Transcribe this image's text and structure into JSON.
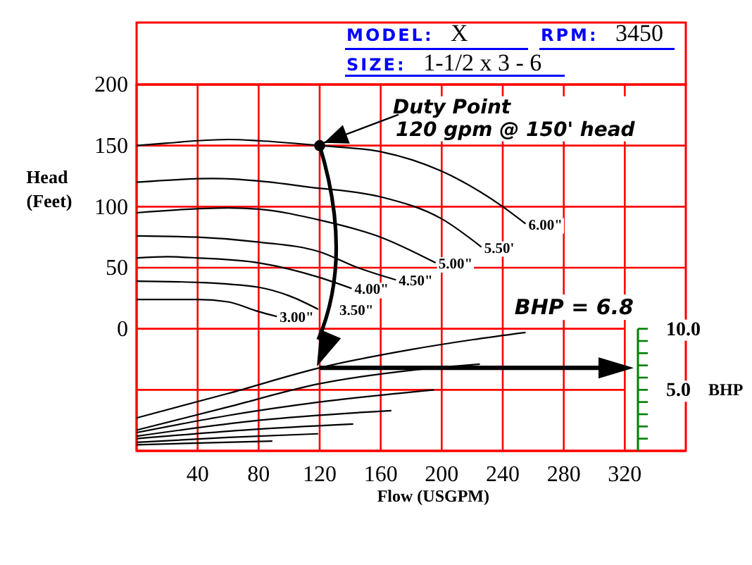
{
  "chart_data": {
    "type": "line",
    "title": "MODEL: X",
    "subtitle": "SIZE: 1-1/2 x 3 - 6",
    "xlabel": "Flow (USGPM)",
    "ylabel": "Head (Feet)",
    "y2label": "BHP",
    "annotations": [
      "RPM: 3450",
      {
        "text": "Duty Point\n120 gpm @ 150' head",
        "x": 120,
        "y": 150
      }
    ],
    "xlim": [
      0,
      360
    ],
    "xticks": [
      40,
      80,
      120,
      160,
      200,
      240,
      280,
      320
    ],
    "ylim": [
      -100,
      200
    ],
    "yticks": [
      {
        "value": -50,
        "label": null
      },
      0,
      50,
      100,
      150,
      200
    ],
    "y2lim": [
      0,
      30
    ],
    "y2ticks": [
      {
        "value": 5,
        "label": "5.0"
      },
      {
        "value": 10,
        "label": "10.0"
      }
    ],
    "grid": true,
    "ref_lines": [
      {
        "axis": "y2",
        "value": 6.8,
        "label": "BHP = 6.8"
      }
    ],
    "series": [
      {
        "name": "6.00\"",
        "color": "#000000",
        "x": [
          0,
          20,
          40,
          60,
          80,
          120,
          160,
          200,
          240,
          255
        ],
        "values": [
          150,
          152,
          154,
          155,
          154,
          150,
          145,
          129,
          100,
          86
        ]
      },
      {
        "name": "5.50'",
        "color": "#000000",
        "x": [
          0,
          50,
          80,
          113,
          160,
          200,
          226
        ],
        "values": [
          120,
          123,
          121,
          116,
          108,
          90,
          67
        ]
      },
      {
        "name": "5.00\"",
        "color": "#000000",
        "x": [
          0,
          60,
          80,
          120,
          160,
          196
        ],
        "values": [
          95,
          99,
          98,
          89,
          75,
          54
        ]
      },
      {
        "name": "4.50\"",
        "color": "#000000",
        "x": [
          0,
          40,
          80,
          120,
          145,
          170
        ],
        "values": [
          76,
          75,
          71,
          63,
          50,
          40
        ]
      },
      {
        "name": "4.00\"",
        "color": "#000000",
        "x": [
          0,
          20,
          40,
          80,
          120,
          141
        ],
        "values": [
          58,
          59,
          58,
          54,
          42,
          33
        ]
      },
      {
        "name": "3.50\"",
        "color": "#000000",
        "x": [
          0,
          40,
          80,
          100,
          119
        ],
        "values": [
          39,
          38,
          34,
          27,
          16
        ]
      },
      {
        "name": "3.00\"",
        "color": "#000000",
        "x": [
          0,
          40,
          60,
          80,
          92
        ],
        "values": [
          24,
          24,
          22,
          14,
          10
        ]
      },
      {
        "axis": "y2",
        "color": "#000000",
        "x": [
          0,
          60,
          120,
          180,
          220,
          255
        ],
        "values": [
          2.7,
          4.7,
          6.8,
          8.3,
          9.1,
          9.7
        ]
      },
      {
        "axis": "y2",
        "color": "#000000",
        "x": [
          0,
          60,
          120,
          180,
          225
        ],
        "values": [
          1.7,
          3.6,
          5.5,
          6.6,
          7.1
        ]
      },
      {
        "axis": "y2",
        "color": "#000000",
        "x": [
          0,
          60,
          120,
          195
        ],
        "values": [
          1.5,
          2.9,
          4.0,
          5.0
        ]
      },
      {
        "axis": "y2",
        "color": "#000000",
        "x": [
          0,
          80,
          167
        ],
        "values": [
          1.2,
          2.5,
          3.3
        ]
      },
      {
        "axis": "y2",
        "color": "#000000",
        "x": [
          0,
          70,
          142
        ],
        "values": [
          1.0,
          1.7,
          2.2
        ]
      },
      {
        "axis": "y2",
        "color": "#000000",
        "x": [
          0,
          60,
          119
        ],
        "values": [
          0.7,
          1.1,
          1.4
        ]
      },
      {
        "axis": "y2",
        "color": "#000000",
        "x": [
          0,
          89
        ],
        "values": [
          0.5,
          0.8
        ]
      },
      {
        "type": "scatter",
        "color": "#000000",
        "marker": "circle",
        "x": [
          120
        ],
        "values": [
          150
        ]
      }
    ]
  }
}
